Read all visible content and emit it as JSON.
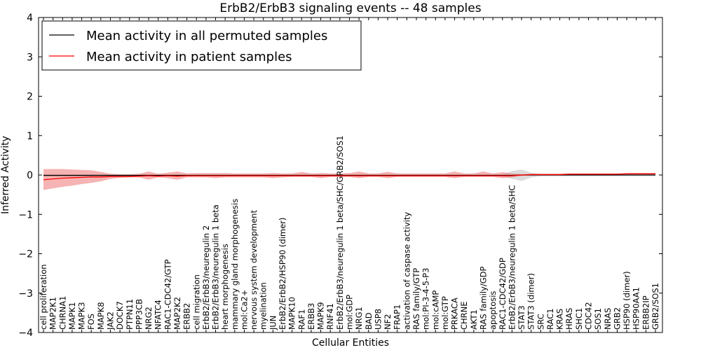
{
  "chart_data": {
    "type": "line",
    "title": "ErbB2/ErbB3 signaling events -- 48 samples",
    "xlabel": "Cellular Entities",
    "ylabel": "Inferred Activity",
    "ylim": [
      -4,
      4
    ],
    "yticks": [
      -4,
      -3,
      -2,
      -1,
      0,
      1,
      2,
      3,
      4
    ],
    "grid": false,
    "legend_position": "top-left",
    "colors": {
      "permuted": "#000000",
      "patient": "#ff0000",
      "patient_band": "#f08080",
      "permuted_band": "#bfbfbf"
    },
    "categories": [
      "cell proliferation",
      "MAP2K1",
      "CHRNA1",
      "MAPK1",
      "MAPK3",
      "FOS",
      "MAPK8",
      "JAK2",
      "DOCK7",
      "PTPN11",
      "PPP3CB",
      "NRG2",
      "NFATC4",
      "RAC1-CDC42/GTP",
      "MAP2K2",
      "ERBB2",
      "cell migration",
      "ErbB2/ErbB3/neuregulin 2",
      "ErbB2/ErbB3/neuregulin 1 beta",
      "heart morphogenesis",
      "mammary gland morphogenesis",
      "mol:Ca2+",
      "nervous system development",
      "myelination",
      "JUN",
      "ErbB2/ErbB2/HSP90 (dimer)",
      "MAPK10",
      "RAF1",
      "ERBB3",
      "MAPK9",
      "RNF41",
      "ErbB2/ErbB3/neuregulin 1 beta/SHC/GRB2/SOS1",
      "mol:GDP",
      "NRG1",
      "BAD",
      "USP8",
      "NF2",
      "FRAP1",
      "activation of caspase activity",
      "RAS family/GTP",
      "mol:PI-3-4-5-P3",
      "mol:cAMP",
      "mol:GTP",
      "PRKACA",
      "CHRNE",
      "AKT1",
      "RAS family/GDP",
      "apoptosis",
      "RAC1-CDC42/GDP",
      "ErbB2/ErbB3/neuregulin 1 beta/SHC",
      "STAT3",
      "STAT3 (dimer)",
      "SRC",
      "RAC1",
      "KRAS",
      "HRAS",
      "SHC1",
      "CDC42",
      "SOS1",
      "NRAS",
      "GRB2",
      "HSP90 (dimer)",
      "HSP90AA1",
      "ERBB2IP",
      "GRB2/SOS1"
    ],
    "series": [
      {
        "name": "Mean activity in all permuted samples",
        "values": [
          -0.01,
          -0.01,
          -0.01,
          -0.01,
          -0.01,
          -0.01,
          -0.01,
          -0.01,
          -0.01,
          -0.01,
          -0.01,
          -0.01,
          -0.01,
          -0.01,
          -0.01,
          -0.01,
          -0.01,
          -0.01,
          -0.01,
          -0.01,
          -0.01,
          -0.01,
          -0.01,
          -0.01,
          -0.01,
          -0.01,
          -0.01,
          -0.01,
          -0.01,
          -0.01,
          -0.01,
          -0.01,
          -0.01,
          -0.01,
          -0.01,
          -0.01,
          -0.01,
          -0.01,
          -0.01,
          -0.01,
          -0.01,
          -0.01,
          -0.01,
          -0.01,
          -0.01,
          -0.01,
          -0.01,
          -0.01,
          -0.01,
          -0.01,
          0.0,
          0.0,
          0.0,
          0.0,
          0.0,
          0.0,
          0.0,
          0.0,
          0.0,
          0.0,
          0.0,
          0.0,
          0.0,
          0.0,
          0.0
        ],
        "lower": [
          -0.03,
          -0.03,
          -0.03,
          -0.03,
          -0.03,
          -0.03,
          -0.03,
          -0.03,
          -0.03,
          -0.03,
          -0.03,
          -0.03,
          -0.03,
          -0.03,
          -0.03,
          -0.03,
          -0.03,
          -0.03,
          -0.03,
          -0.03,
          -0.03,
          -0.03,
          -0.03,
          -0.03,
          -0.03,
          -0.03,
          -0.03,
          -0.03,
          -0.03,
          -0.03,
          -0.03,
          -0.03,
          -0.03,
          -0.03,
          -0.03,
          -0.03,
          -0.03,
          -0.03,
          -0.03,
          -0.03,
          -0.03,
          -0.03,
          -0.03,
          -0.03,
          -0.03,
          -0.03,
          -0.03,
          -0.03,
          -0.03,
          -0.1,
          -0.15,
          -0.06,
          -0.03,
          -0.03,
          -0.03,
          -0.03,
          -0.03,
          -0.03,
          -0.03,
          -0.03,
          -0.03,
          -0.03,
          -0.03,
          -0.03,
          -0.03
        ],
        "upper": [
          0.02,
          0.02,
          0.02,
          0.02,
          0.02,
          0.02,
          0.02,
          0.02,
          0.02,
          0.02,
          0.02,
          0.02,
          0.02,
          0.02,
          0.02,
          0.02,
          0.02,
          0.02,
          0.02,
          0.02,
          0.02,
          0.02,
          0.02,
          0.02,
          0.02,
          0.02,
          0.02,
          0.02,
          0.02,
          0.02,
          0.02,
          0.02,
          0.02,
          0.02,
          0.02,
          0.02,
          0.02,
          0.02,
          0.02,
          0.02,
          0.02,
          0.02,
          0.02,
          0.02,
          0.02,
          0.02,
          0.02,
          0.02,
          0.02,
          0.1,
          0.14,
          0.06,
          0.03,
          0.03,
          0.03,
          0.03,
          0.03,
          0.03,
          0.03,
          0.03,
          0.03,
          0.03,
          0.03,
          0.03,
          0.03
        ]
      },
      {
        "name": "Mean activity in patient samples",
        "values": [
          -0.12,
          -0.1,
          -0.08,
          -0.07,
          -0.06,
          -0.05,
          -0.05,
          -0.04,
          -0.04,
          -0.04,
          -0.03,
          -0.02,
          -0.03,
          -0.02,
          -0.03,
          -0.02,
          -0.02,
          -0.02,
          -0.02,
          -0.02,
          -0.02,
          -0.02,
          -0.02,
          -0.02,
          -0.02,
          -0.02,
          -0.02,
          -0.02,
          -0.02,
          -0.02,
          -0.02,
          -0.02,
          -0.02,
          -0.02,
          -0.02,
          -0.02,
          -0.02,
          -0.02,
          -0.02,
          -0.02,
          -0.02,
          -0.02,
          -0.02,
          -0.02,
          -0.02,
          -0.02,
          -0.02,
          -0.02,
          -0.02,
          -0.02,
          0.0,
          0.01,
          0.01,
          0.01,
          0.01,
          0.02,
          0.02,
          0.02,
          0.02,
          0.02,
          0.02,
          0.03,
          0.03,
          0.03,
          0.03
        ],
        "lower": [
          -0.38,
          -0.34,
          -0.3,
          -0.27,
          -0.23,
          -0.2,
          -0.16,
          -0.1,
          -0.07,
          -0.06,
          -0.06,
          -0.12,
          -0.06,
          -0.08,
          -0.12,
          -0.06,
          -0.06,
          -0.06,
          -0.08,
          -0.06,
          -0.06,
          -0.06,
          -0.06,
          -0.06,
          -0.08,
          -0.06,
          -0.05,
          -0.05,
          -0.05,
          -0.08,
          -0.05,
          -0.05,
          -0.05,
          -0.08,
          -0.05,
          -0.05,
          -0.08,
          -0.05,
          -0.05,
          -0.05,
          -0.05,
          -0.05,
          -0.05,
          -0.08,
          -0.05,
          -0.05,
          -0.05,
          -0.05,
          -0.08,
          -0.06,
          -0.02,
          -0.01,
          0.0,
          0.0,
          0.0,
          0.01,
          0.01,
          0.01,
          0.01,
          0.01,
          0.01,
          0.02,
          0.02,
          0.02,
          0.02
        ],
        "upper": [
          0.15,
          0.15,
          0.15,
          0.14,
          0.13,
          0.12,
          0.08,
          0.03,
          0.02,
          0.02,
          0.03,
          0.09,
          0.03,
          0.06,
          0.09,
          0.04,
          0.05,
          0.05,
          0.05,
          0.05,
          0.04,
          0.04,
          0.04,
          0.04,
          0.05,
          0.04,
          0.04,
          0.08,
          0.04,
          0.05,
          0.04,
          0.04,
          0.05,
          0.09,
          0.04,
          0.04,
          0.08,
          0.04,
          0.04,
          0.04,
          0.04,
          0.04,
          0.04,
          0.09,
          0.04,
          0.04,
          0.09,
          0.04,
          0.07,
          0.04,
          0.02,
          0.03,
          0.03,
          0.03,
          0.03,
          0.04,
          0.04,
          0.04,
          0.04,
          0.04,
          0.04,
          0.05,
          0.05,
          0.05,
          0.05
        ]
      }
    ]
  }
}
